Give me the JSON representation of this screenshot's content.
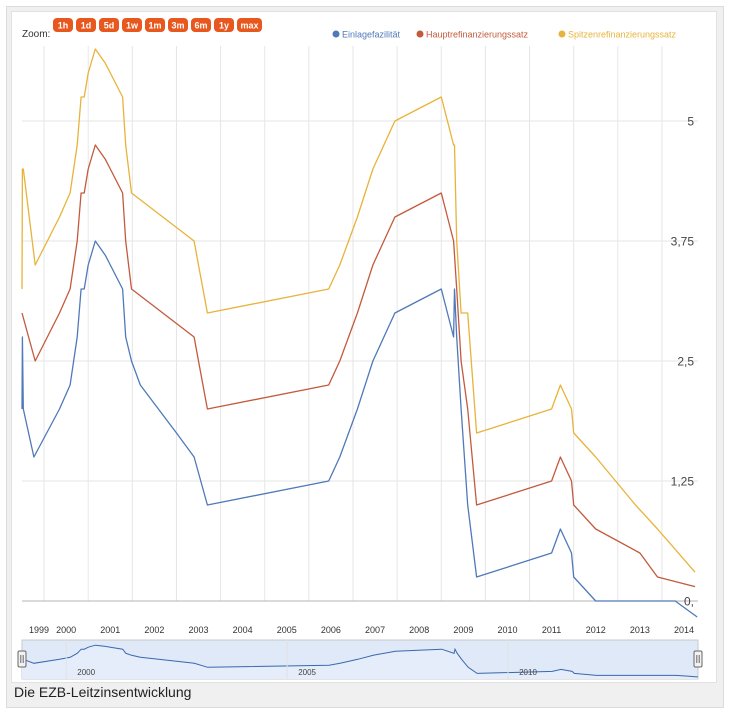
{
  "zoom": {
    "label": "Zoom:",
    "buttons": [
      "1h",
      "1d",
      "5d",
      "1w",
      "1m",
      "3m",
      "6m",
      "1y",
      "max"
    ]
  },
  "caption": "Die EZB-Leitzinsentwicklung",
  "colors": {
    "einlage": "#4f79b8",
    "haupt": "#c35a3c",
    "spitzen": "#e8b33a",
    "nav_fill": "#dfe9f8",
    "nav_line": "#3a67ad",
    "zoom_button": "#e8581e"
  },
  "chart_data": {
    "type": "line",
    "title": "",
    "xlabel": "",
    "ylabel": "",
    "ylim": [
      -0.1,
      5.6
    ],
    "xlim": [
      1999.0,
      2014.3
    ],
    "y_ticks": [
      {
        "value": 5.0,
        "label": "5"
      },
      {
        "value": 3.75,
        "label": "3,75"
      },
      {
        "value": 2.5,
        "label": "2,5"
      },
      {
        "value": 1.25,
        "label": "1,25"
      },
      {
        "value": 0.0,
        "label": "0,"
      }
    ],
    "x_ticks": [
      "1999",
      "2000",
      "2001",
      "2002",
      "2003",
      "2004",
      "2005",
      "2006",
      "2007",
      "2008",
      "2009",
      "2010",
      "2011",
      "2012",
      "2013",
      "2014"
    ],
    "grid": true,
    "legend": "top-right",
    "series": [
      {
        "name": "Einlagefazilität",
        "color": "#4f79b8",
        "points": [
          [
            1999.0,
            2.0
          ],
          [
            1999.01,
            2.75
          ],
          [
            1999.03,
            2.0
          ],
          [
            1999.27,
            1.5
          ],
          [
            1999.85,
            2.0
          ],
          [
            2000.09,
            2.25
          ],
          [
            2000.25,
            2.75
          ],
          [
            2000.34,
            3.25
          ],
          [
            2000.41,
            3.25
          ],
          [
            2000.5,
            3.5
          ],
          [
            2000.66,
            3.75
          ],
          [
            2000.89,
            3.6
          ],
          [
            2001.0,
            3.5
          ],
          [
            2001.28,
            3.25
          ],
          [
            2001.35,
            2.75
          ],
          [
            2001.48,
            2.5
          ],
          [
            2001.68,
            2.25
          ],
          [
            2002.5,
            1.75
          ],
          [
            2002.9,
            1.5
          ],
          [
            2003.2,
            1.0
          ],
          [
            2005.95,
            1.25
          ],
          [
            2006.2,
            1.5
          ],
          [
            2006.4,
            1.75
          ],
          [
            2006.6,
            2.0
          ],
          [
            2006.95,
            2.5
          ],
          [
            2007.45,
            3.0
          ],
          [
            2008.5,
            3.25
          ],
          [
            2008.78,
            2.75
          ],
          [
            2008.8,
            3.25
          ],
          [
            2008.85,
            2.75
          ],
          [
            2008.95,
            2.0
          ],
          [
            2009.1,
            1.0
          ],
          [
            2009.3,
            0.25
          ],
          [
            2011.0,
            0.5
          ],
          [
            2011.2,
            0.75
          ],
          [
            2011.45,
            0.5
          ],
          [
            2011.5,
            0.25
          ],
          [
            2012.0,
            0.0
          ],
          [
            2013.8,
            0.0
          ],
          [
            2014.1,
            -0.1
          ],
          [
            2014.3,
            -0.2
          ]
        ]
      },
      {
        "name": "Hauptrefinanzierungssatz",
        "color": "#c35a3c",
        "points": [
          [
            1999.0,
            3.0
          ],
          [
            1999.3,
            2.5
          ],
          [
            1999.85,
            3.0
          ],
          [
            2000.09,
            3.25
          ],
          [
            2000.25,
            3.75
          ],
          [
            2000.34,
            4.25
          ],
          [
            2000.41,
            4.25
          ],
          [
            2000.5,
            4.5
          ],
          [
            2000.66,
            4.75
          ],
          [
            2000.89,
            4.6
          ],
          [
            2001.0,
            4.5
          ],
          [
            2001.28,
            4.25
          ],
          [
            2001.35,
            3.75
          ],
          [
            2001.48,
            3.25
          ],
          [
            2002.9,
            2.75
          ],
          [
            2003.0,
            2.5
          ],
          [
            2003.2,
            2.0
          ],
          [
            2005.95,
            2.25
          ],
          [
            2006.2,
            2.5
          ],
          [
            2006.4,
            2.75
          ],
          [
            2006.6,
            3.0
          ],
          [
            2006.95,
            3.5
          ],
          [
            2007.45,
            4.0
          ],
          [
            2008.5,
            4.25
          ],
          [
            2008.78,
            3.75
          ],
          [
            2008.85,
            3.25
          ],
          [
            2008.95,
            2.5
          ],
          [
            2009.1,
            2.0
          ],
          [
            2009.3,
            1.0
          ],
          [
            2011.0,
            1.25
          ],
          [
            2011.2,
            1.5
          ],
          [
            2011.45,
            1.25
          ],
          [
            2011.5,
            1.0
          ],
          [
            2012.0,
            0.75
          ],
          [
            2013.0,
            0.5
          ],
          [
            2013.4,
            0.25
          ],
          [
            2014.25,
            0.15
          ]
        ]
      },
      {
        "name": "Spitzenrefinanzierungssatz",
        "color": "#e8b33a",
        "points": [
          [
            1999.0,
            3.25
          ],
          [
            1999.01,
            4.5
          ],
          [
            1999.03,
            4.5
          ],
          [
            1999.3,
            3.5
          ],
          [
            1999.85,
            4.0
          ],
          [
            2000.09,
            4.25
          ],
          [
            2000.25,
            4.75
          ],
          [
            2000.34,
            5.25
          ],
          [
            2000.41,
            5.25
          ],
          [
            2000.5,
            5.5
          ],
          [
            2000.66,
            5.75
          ],
          [
            2000.89,
            5.6
          ],
          [
            2001.0,
            5.5
          ],
          [
            2001.28,
            5.25
          ],
          [
            2001.35,
            4.75
          ],
          [
            2001.48,
            4.25
          ],
          [
            2002.9,
            3.75
          ],
          [
            2003.0,
            3.5
          ],
          [
            2003.2,
            3.0
          ],
          [
            2005.95,
            3.25
          ],
          [
            2006.2,
            3.5
          ],
          [
            2006.4,
            3.75
          ],
          [
            2006.6,
            4.0
          ],
          [
            2006.95,
            4.5
          ],
          [
            2007.45,
            5.0
          ],
          [
            2008.5,
            5.25
          ],
          [
            2008.78,
            4.75
          ],
          [
            2008.8,
            4.75
          ],
          [
            2008.85,
            3.75
          ],
          [
            2008.95,
            3.0
          ],
          [
            2009.1,
            3.0
          ],
          [
            2009.3,
            1.75
          ],
          [
            2011.0,
            2.0
          ],
          [
            2011.2,
            2.25
          ],
          [
            2011.45,
            2.0
          ],
          [
            2011.5,
            1.75
          ],
          [
            2012.0,
            1.5
          ],
          [
            2012.9,
            1.0
          ],
          [
            2013.4,
            0.75
          ],
          [
            2014.25,
            0.3
          ]
        ]
      }
    ],
    "navigator": {
      "labels": [
        "2000",
        "2005",
        "2010"
      ]
    }
  }
}
